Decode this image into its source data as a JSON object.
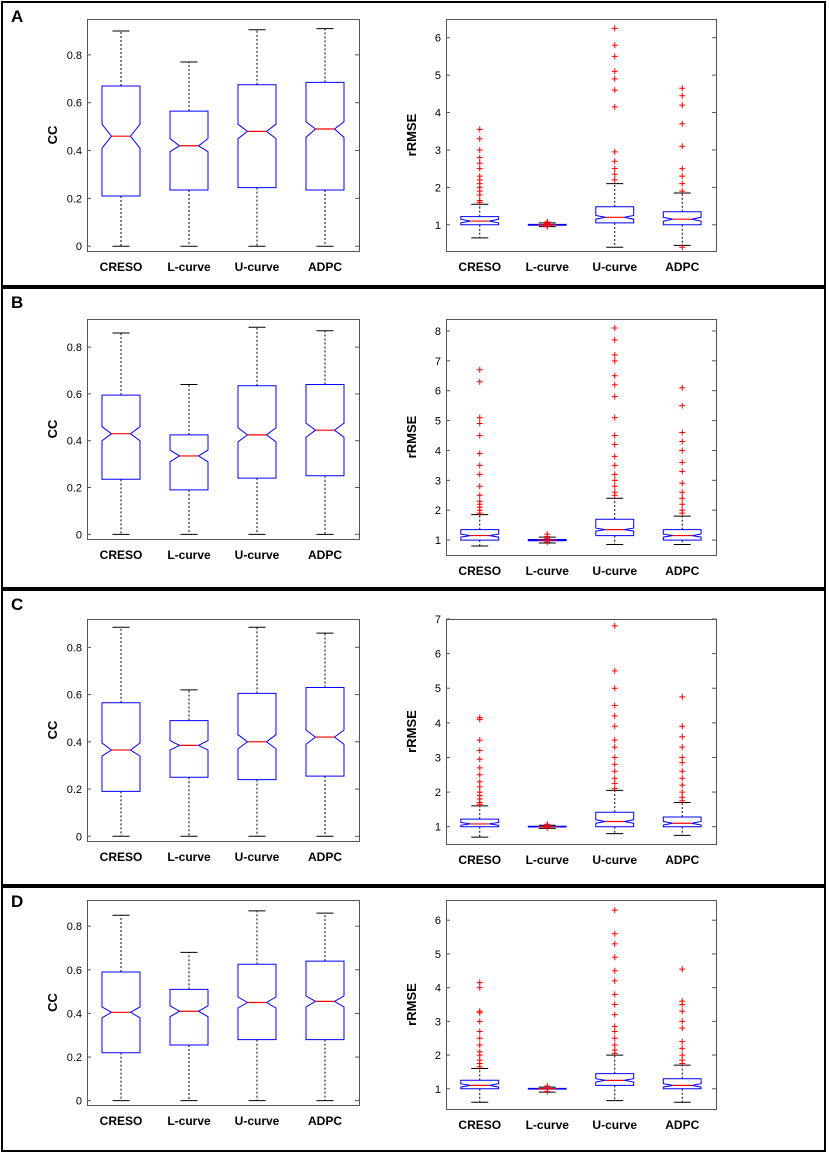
{
  "colors": {
    "box": "#0000ff",
    "median": "#ff0000",
    "outlier": "#ff0000",
    "whisker": "#000000",
    "frame": "#000000"
  },
  "chart_data": [
    {
      "panel": "A",
      "type": "boxplot",
      "ylabel": "CC",
      "categories": [
        "CRESO",
        "L-curve",
        "U-curve",
        "ADPC"
      ],
      "ylim": [
        -0.02,
        0.95
      ],
      "yticks": [
        0,
        0.2,
        0.4,
        0.6,
        0.8
      ],
      "ytick_labels": [
        "0",
        "0.2",
        "0.4",
        "0.6",
        "0.8"
      ],
      "boxes": [
        {
          "min": 0.0,
          "q1": 0.21,
          "median": 0.46,
          "q3": 0.67,
          "max": 0.9,
          "notch": [
            0.41,
            0.51
          ],
          "outliers": []
        },
        {
          "min": 0.0,
          "q1": 0.235,
          "median": 0.42,
          "q3": 0.565,
          "max": 0.77,
          "notch": [
            0.395,
            0.45
          ],
          "outliers": []
        },
        {
          "min": 0.0,
          "q1": 0.245,
          "median": 0.48,
          "q3": 0.675,
          "max": 0.905,
          "notch": [
            0.45,
            0.51
          ],
          "outliers": []
        },
        {
          "min": 0.0,
          "q1": 0.235,
          "median": 0.49,
          "q3": 0.685,
          "max": 0.91,
          "notch": [
            0.455,
            0.52
          ],
          "outliers": []
        }
      ]
    },
    {
      "panel": "A",
      "type": "boxplot",
      "ylabel": "rRMSE",
      "categories": [
        "CRESO",
        "L-curve",
        "U-curve",
        "ADPC"
      ],
      "ylim": [
        0.3,
        6.5
      ],
      "yticks": [
        1,
        2,
        3,
        4,
        5,
        6
      ],
      "ytick_labels": [
        "1",
        "2",
        "3",
        "4",
        "5",
        "6"
      ],
      "boxes": [
        {
          "min": 0.65,
          "q1": 1.0,
          "median": 1.1,
          "q3": 1.22,
          "max": 1.55,
          "notch": [
            1.05,
            1.15
          ],
          "outliers": [
            1.6,
            1.65,
            1.8,
            1.9,
            2.0,
            2.1,
            2.2,
            2.3,
            2.5,
            2.65,
            2.8,
            3.0,
            3.3,
            3.55
          ]
        },
        {
          "min": 0.95,
          "q1": 0.99,
          "median": 1.0,
          "q3": 1.01,
          "max": 1.05,
          "notch": [
            1.0,
            1.0
          ],
          "outliers": [
            0.95,
            0.97,
            1.03,
            1.06,
            1.08
          ]
        },
        {
          "min": 0.4,
          "q1": 1.05,
          "median": 1.2,
          "q3": 1.48,
          "max": 2.1,
          "notch": [
            1.15,
            1.25
          ],
          "outliers": [
            2.2,
            2.35,
            2.5,
            2.7,
            2.95,
            4.15,
            4.6,
            4.9,
            5.1,
            5.5,
            5.8,
            6.25
          ]
        },
        {
          "min": 0.45,
          "q1": 1.0,
          "median": 1.15,
          "q3": 1.35,
          "max": 1.85,
          "notch": [
            1.1,
            1.2
          ],
          "outliers": [
            0.4,
            1.9,
            2.1,
            2.3,
            2.5,
            3.1,
            3.7,
            4.2,
            4.45,
            4.65
          ]
        }
      ]
    },
    {
      "panel": "B",
      "type": "boxplot",
      "ylabel": "CC",
      "categories": [
        "CRESO",
        "L-curve",
        "U-curve",
        "ADPC"
      ],
      "ylim": [
        -0.02,
        0.92
      ],
      "yticks": [
        0,
        0.2,
        0.4,
        0.6,
        0.8
      ],
      "ytick_labels": [
        "0",
        "0.2",
        "0.4",
        "0.6",
        "0.8"
      ],
      "boxes": [
        {
          "min": 0.0,
          "q1": 0.235,
          "median": 0.43,
          "q3": 0.595,
          "max": 0.86,
          "notch": [
            0.4,
            0.46
          ],
          "outliers": []
        },
        {
          "min": 0.0,
          "q1": 0.19,
          "median": 0.335,
          "q3": 0.425,
          "max": 0.64,
          "notch": [
            0.31,
            0.36
          ],
          "outliers": []
        },
        {
          "min": 0.0,
          "q1": 0.24,
          "median": 0.425,
          "q3": 0.635,
          "max": 0.885,
          "notch": [
            0.395,
            0.455
          ],
          "outliers": []
        },
        {
          "min": 0.0,
          "q1": 0.25,
          "median": 0.445,
          "q3": 0.64,
          "max": 0.87,
          "notch": [
            0.415,
            0.475
          ],
          "outliers": []
        }
      ]
    },
    {
      "panel": "B",
      "type": "boxplot",
      "ylabel": "rRMSE",
      "categories": [
        "CRESO",
        "L-curve",
        "U-curve",
        "ADPC"
      ],
      "ylim": [
        0.5,
        8.4
      ],
      "yticks": [
        1,
        2,
        3,
        4,
        5,
        6,
        7,
        8
      ],
      "ytick_labels": [
        "1",
        "2",
        "3",
        "4",
        "5",
        "6",
        "7",
        "8"
      ],
      "boxes": [
        {
          "min": 0.8,
          "q1": 1.0,
          "median": 1.15,
          "q3": 1.35,
          "max": 1.85,
          "notch": [
            1.1,
            1.2
          ],
          "outliers": [
            1.9,
            2.0,
            2.1,
            2.2,
            2.3,
            2.5,
            2.8,
            3.2,
            3.5,
            3.9,
            4.5,
            4.9,
            5.1,
            6.3,
            6.7
          ]
        },
        {
          "min": 0.9,
          "q1": 0.98,
          "median": 1.0,
          "q3": 1.02,
          "max": 1.1,
          "notch": [
            1.0,
            1.0
          ],
          "outliers": [
            0.93,
            1.05,
            1.12,
            1.2
          ]
        },
        {
          "min": 0.85,
          "q1": 1.15,
          "median": 1.35,
          "q3": 1.7,
          "max": 2.4,
          "notch": [
            1.3,
            1.4
          ],
          "outliers": [
            2.5,
            2.6,
            2.8,
            3.0,
            3.2,
            3.5,
            3.8,
            4.2,
            4.5,
            5.1,
            5.8,
            6.2,
            6.5,
            7.0,
            7.2,
            7.7,
            8.1
          ]
        },
        {
          "min": 0.85,
          "q1": 1.0,
          "median": 1.15,
          "q3": 1.35,
          "max": 1.8,
          "notch": [
            1.1,
            1.2
          ],
          "outliers": [
            1.9,
            2.0,
            2.2,
            2.4,
            2.6,
            2.9,
            3.3,
            3.6,
            4.0,
            4.3,
            4.6,
            5.5,
            6.1
          ]
        }
      ]
    },
    {
      "panel": "C",
      "type": "boxplot",
      "ylabel": "CC",
      "categories": [
        "CRESO",
        "L-curve",
        "U-curve",
        "ADPC"
      ],
      "ylim": [
        -0.02,
        0.92
      ],
      "yticks": [
        0,
        0.2,
        0.4,
        0.6,
        0.8
      ],
      "ytick_labels": [
        "0",
        "0.2",
        "0.4",
        "0.6",
        "0.8"
      ],
      "boxes": [
        {
          "min": 0.0,
          "q1": 0.19,
          "median": 0.365,
          "q3": 0.565,
          "max": 0.885,
          "notch": [
            0.34,
            0.395
          ],
          "outliers": []
        },
        {
          "min": 0.0,
          "q1": 0.25,
          "median": 0.385,
          "q3": 0.49,
          "max": 0.62,
          "notch": [
            0.365,
            0.405
          ],
          "outliers": []
        },
        {
          "min": 0.0,
          "q1": 0.24,
          "median": 0.4,
          "q3": 0.605,
          "max": 0.885,
          "notch": [
            0.37,
            0.43
          ],
          "outliers": []
        },
        {
          "min": 0.0,
          "q1": 0.255,
          "median": 0.42,
          "q3": 0.63,
          "max": 0.86,
          "notch": [
            0.39,
            0.45
          ],
          "outliers": []
        }
      ]
    },
    {
      "panel": "C",
      "type": "boxplot",
      "ylabel": "rRMSE",
      "categories": [
        "CRESO",
        "L-curve",
        "U-curve",
        "ADPC"
      ],
      "ylim": [
        0.5,
        7.0
      ],
      "yticks": [
        1,
        2,
        3,
        4,
        5,
        6,
        7
      ],
      "ytick_labels": [
        "1",
        "2",
        "3",
        "4",
        "5",
        "6",
        "7"
      ],
      "boxes": [
        {
          "min": 0.7,
          "q1": 1.0,
          "median": 1.08,
          "q3": 1.22,
          "max": 1.6,
          "notch": [
            1.04,
            1.12
          ],
          "outliers": [
            1.65,
            1.7,
            1.8,
            1.9,
            2.0,
            2.15,
            2.3,
            2.5,
            2.7,
            2.95,
            3.2,
            3.5,
            4.1,
            4.15
          ]
        },
        {
          "min": 0.95,
          "q1": 0.99,
          "median": 1.0,
          "q3": 1.01,
          "max": 1.04,
          "notch": [
            1.0,
            1.0
          ],
          "outliers": [
            0.97,
            1.05,
            1.07
          ]
        },
        {
          "min": 0.8,
          "q1": 1.0,
          "median": 1.15,
          "q3": 1.42,
          "max": 2.05,
          "notch": [
            1.1,
            1.2
          ],
          "outliers": [
            2.1,
            2.25,
            2.4,
            2.6,
            2.8,
            3.0,
            3.3,
            3.5,
            3.9,
            4.2,
            4.5,
            5.0,
            5.5,
            6.8
          ]
        },
        {
          "min": 0.75,
          "q1": 1.0,
          "median": 1.1,
          "q3": 1.28,
          "max": 1.7,
          "notch": [
            1.05,
            1.15
          ],
          "outliers": [
            1.75,
            1.85,
            2.0,
            2.2,
            2.4,
            2.6,
            2.85,
            3.0,
            3.3,
            3.6,
            3.9,
            4.75
          ]
        }
      ]
    },
    {
      "panel": "D",
      "type": "boxplot",
      "ylabel": "CC",
      "categories": [
        "CRESO",
        "L-curve",
        "U-curve",
        "ADPC"
      ],
      "ylim": [
        -0.02,
        0.92
      ],
      "yticks": [
        0,
        0.2,
        0.4,
        0.6,
        0.8
      ],
      "ytick_labels": [
        "0",
        "0.2",
        "0.4",
        "0.6",
        "0.8"
      ],
      "boxes": [
        {
          "min": 0.0,
          "q1": 0.22,
          "median": 0.405,
          "q3": 0.59,
          "max": 0.85,
          "notch": [
            0.38,
            0.43
          ],
          "outliers": []
        },
        {
          "min": 0.0,
          "q1": 0.255,
          "median": 0.41,
          "q3": 0.51,
          "max": 0.68,
          "notch": [
            0.385,
            0.435
          ],
          "outliers": []
        },
        {
          "min": 0.0,
          "q1": 0.28,
          "median": 0.45,
          "q3": 0.625,
          "max": 0.87,
          "notch": [
            0.425,
            0.475
          ],
          "outliers": []
        },
        {
          "min": 0.0,
          "q1": 0.28,
          "median": 0.455,
          "q3": 0.64,
          "max": 0.86,
          "notch": [
            0.43,
            0.48
          ],
          "outliers": []
        }
      ]
    },
    {
      "panel": "D",
      "type": "boxplot",
      "ylabel": "rRMSE",
      "categories": [
        "CRESO",
        "L-curve",
        "U-curve",
        "ADPC"
      ],
      "ylim": [
        0.4,
        6.6
      ],
      "yticks": [
        1,
        2,
        3,
        4,
        5,
        6
      ],
      "ytick_labels": [
        "1",
        "2",
        "3",
        "4",
        "5",
        "6"
      ],
      "boxes": [
        {
          "min": 0.6,
          "q1": 1.0,
          "median": 1.1,
          "q3": 1.25,
          "max": 1.6,
          "notch": [
            1.05,
            1.15
          ],
          "outliers": [
            1.65,
            1.75,
            1.85,
            2.0,
            2.1,
            2.3,
            2.5,
            2.7,
            3.0,
            3.25,
            3.3,
            4.0,
            4.15
          ]
        },
        {
          "min": 0.9,
          "q1": 0.99,
          "median": 1.0,
          "q3": 1.01,
          "max": 1.05,
          "notch": [
            1.0,
            1.0
          ],
          "outliers": [
            0.92,
            1.06,
            1.08
          ]
        },
        {
          "min": 0.65,
          "q1": 1.1,
          "median": 1.25,
          "q3": 1.45,
          "max": 2.0,
          "notch": [
            1.2,
            1.3
          ],
          "outliers": [
            2.05,
            2.15,
            2.3,
            2.5,
            2.7,
            2.85,
            3.2,
            3.5,
            3.8,
            4.2,
            4.5,
            4.9,
            5.3,
            5.6,
            6.3
          ]
        },
        {
          "min": 0.6,
          "q1": 1.0,
          "median": 1.1,
          "q3": 1.3,
          "max": 1.7,
          "notch": [
            1.05,
            1.15
          ],
          "outliers": [
            1.75,
            1.85,
            2.0,
            2.2,
            2.4,
            2.8,
            3.0,
            3.3,
            3.5,
            3.6,
            4.55
          ]
        }
      ]
    }
  ]
}
